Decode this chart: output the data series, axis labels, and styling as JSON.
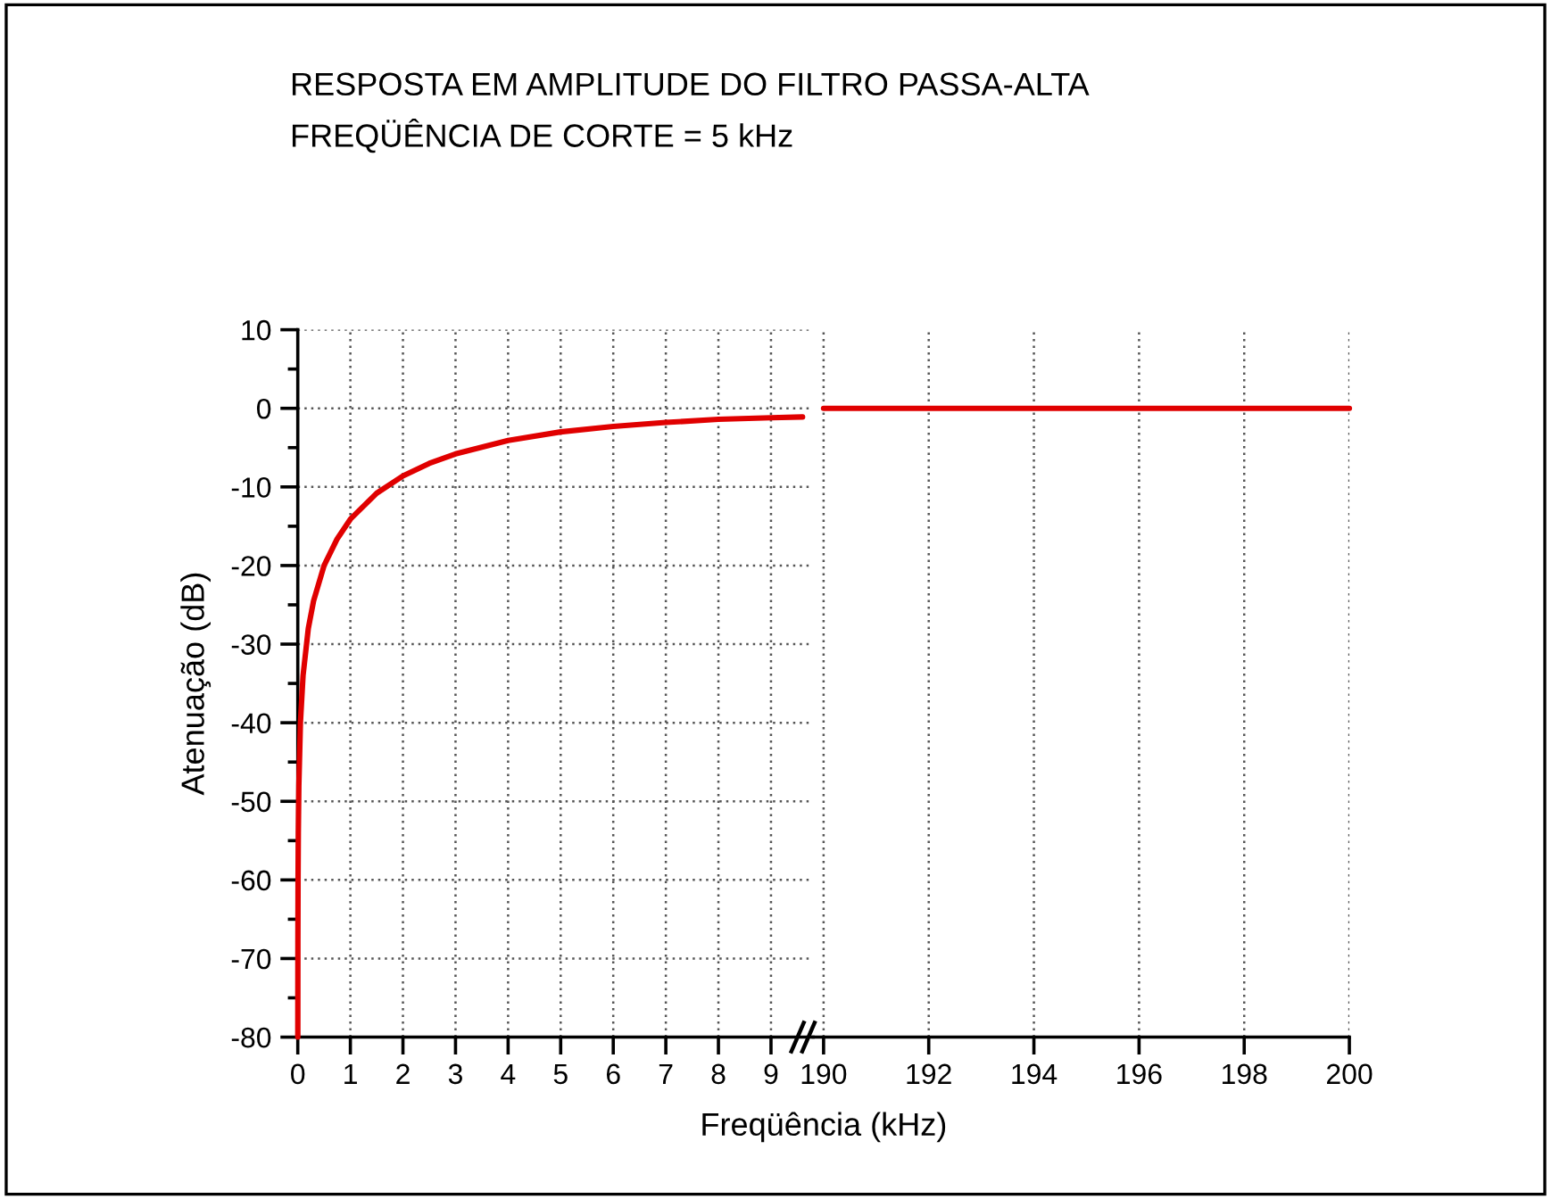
{
  "chart_data": [
    {
      "type": "line",
      "title": "RESPOSTA EM AMPLITUDE DO FILTRO PASSA-ALTA",
      "subtitle": "FREQÜÊNCIA DE CORTE = 5 kHz",
      "xlabel": "Freqüência (kHz)",
      "ylabel": "Atenuação (dB)",
      "x": [
        0.0005,
        0.002,
        0.005,
        0.01,
        0.02,
        0.05,
        0.1,
        0.2,
        0.3,
        0.5,
        0.75,
        1,
        1.5,
        2,
        2.5,
        3,
        4,
        5,
        6,
        7,
        8,
        9,
        9.6
      ],
      "series": [
        {
          "color": "#e00000",
          "values": [
            -80,
            -68,
            -60,
            -54,
            -48,
            -40,
            -34,
            -28,
            -24.5,
            -20,
            -16.6,
            -14.1,
            -10.8,
            -8.6,
            -7,
            -5.8,
            -4.1,
            -3,
            -2.3,
            -1.8,
            -1.4,
            -1.2,
            -1.1
          ]
        }
      ],
      "xlim": [
        0,
        9.8
      ],
      "xticks": [
        0,
        1,
        2,
        3,
        4,
        5,
        6,
        7,
        8,
        9
      ],
      "ylim": [
        -80,
        10
      ],
      "yticks": [
        -80,
        {
          "value": -75,
          "label": null
        },
        -70,
        {
          "value": -65,
          "label": null
        },
        -60,
        {
          "value": -55,
          "label": null
        },
        -50,
        {
          "value": -45,
          "label": null
        },
        -40,
        {
          "value": -35,
          "label": null
        },
        -30,
        {
          "value": -25,
          "label": null
        },
        -20,
        {
          "value": -15,
          "label": null
        },
        -10,
        {
          "value": -5,
          "label": null
        },
        0,
        {
          "value": 5,
          "label": null
        },
        10
      ],
      "grid": true,
      "marker": "none",
      "line_style": "solid",
      "legend": false
    },
    {
      "type": "line",
      "x": [
        190,
        200
      ],
      "series": [
        {
          "color": "#e00000",
          "values": [
            0,
            0
          ]
        }
      ],
      "xlim": [
        189.8,
        200
      ],
      "xticks": [
        190,
        192,
        194,
        196,
        198,
        200
      ],
      "ylim": [
        -80,
        10
      ],
      "tick_labels": "x",
      "grid": true,
      "marker": "none",
      "line_style": "solid",
      "legend": false
    }
  ]
}
